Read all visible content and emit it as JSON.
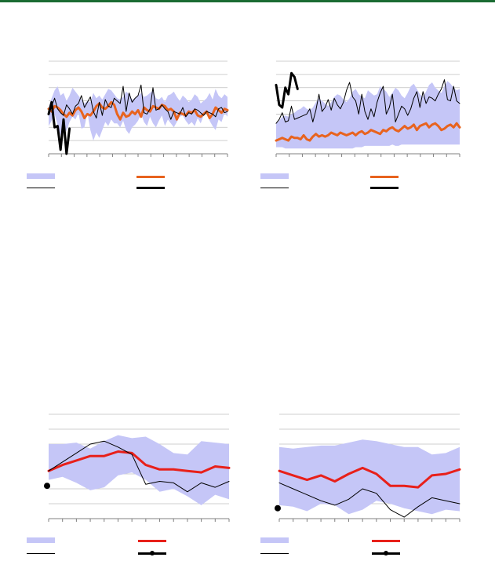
{
  "colors": {
    "top_bar": "#1a6b32",
    "band": "#c5c6f7",
    "orange": "#e8631e",
    "red": "#e8201a",
    "black": "#000000",
    "grid": "#bfbfbf"
  },
  "chart_data": [
    {
      "type": "line",
      "panel": "top-left",
      "title": "",
      "xlabel": "",
      "ylabel": "",
      "ylim": [
        0,
        7
      ],
      "n_ticks_x": 14,
      "grid": "horizontal",
      "band_low": [
        2.1,
        2.5,
        3.0,
        2.2,
        1.4,
        1.9,
        1.7,
        2.4,
        2.8,
        2.6,
        3.1,
        1.9,
        2.0,
        3.1,
        1.8,
        1.0,
        1.6,
        1.2,
        1.8,
        2.4,
        2.1,
        2.6,
        2.3,
        2.3,
        2.0,
        2.5,
        1.8,
        1.5,
        2.0,
        2.2,
        2.5,
        3.0,
        2.4,
        2.1,
        2.8,
        2.3,
        2.0,
        2.5,
        2.9,
        2.1,
        2.6,
        2.3,
        2.0,
        2.4,
        2.8,
        2.9,
        2.5,
        2.2,
        2.4,
        2.1,
        2.7,
        2.3,
        2.9,
        3.1,
        2.5,
        2.1,
        1.8,
        2.6,
        2.4,
        3.1,
        2.8
      ],
      "band_high": [
        3.5,
        4.2,
        4.8,
        5.1,
        4.4,
        4.6,
        4.0,
        4.4,
        5.0,
        4.7,
        4.4,
        4.1,
        3.8,
        4.0,
        3.9,
        4.6,
        4.2,
        4.4,
        4.1,
        4.5,
        4.9,
        4.8,
        4.5,
        4.2,
        4.1,
        4.3,
        4.7,
        4.5,
        4.1,
        4.2,
        4.4,
        4.6,
        4.3,
        4.4,
        4.6,
        4.8,
        4.2,
        4.1,
        4.3,
        3.9,
        4.4,
        4.5,
        4.7,
        4.3,
        4.0,
        4.4,
        4.2,
        3.9,
        4.1,
        4.5,
        4.3,
        3.8,
        4.0,
        4.2,
        4.6,
        4.1,
        4.9,
        4.4,
        4.2,
        4.5,
        4.3
      ],
      "series": [
        {
          "style": "orange-thick",
          "values": [
            3.4,
            3.2,
            3.6,
            3.5,
            3.3,
            3.0,
            2.8,
            3.1,
            2.9,
            3.3,
            3.5,
            3.2,
            2.7,
            3.0,
            2.9,
            3.2,
            3.6,
            3.8,
            3.5,
            3.4,
            3.6,
            3.9,
            3.7,
            3.0,
            2.6,
            3.1,
            2.8,
            2.9,
            3.2,
            3.0,
            3.3,
            2.8,
            3.5,
            3.3,
            3.2,
            3.6,
            3.5,
            3.4,
            3.7,
            3.6,
            3.3,
            3.4,
            3.2,
            2.6,
            3.1,
            3.0,
            2.9,
            3.2,
            3.1,
            3.3,
            2.9,
            2.8,
            3.0,
            3.2,
            2.7,
            3.0,
            3.5,
            3.3,
            3.1,
            3.4,
            3.3
          ]
        },
        {
          "style": "black-thin",
          "values": [
            3.0,
            3.6,
            4.2,
            3.4,
            3.1,
            2.9,
            3.7,
            3.4,
            3.0,
            3.6,
            3.8,
            4.4,
            3.5,
            3.9,
            4.3,
            3.2,
            2.7,
            3.9,
            2.9,
            4.1,
            3.6,
            3.5,
            4.2,
            4.0,
            3.8,
            5.1,
            3.2,
            4.6,
            3.9,
            4.2,
            4.4,
            5.2,
            3.1,
            3.0,
            3.4,
            5.0,
            3.3,
            3.4,
            3.7,
            3.4,
            3.2,
            2.6,
            3.2,
            3.1,
            3.0,
            3.5,
            2.8,
            3.1,
            3.0,
            3.4,
            3.3,
            3.1,
            2.9,
            3.2,
            3.1,
            3.0,
            2.8,
            3.4,
            3.5,
            3.1,
            3.2
          ]
        },
        {
          "style": "black-thick",
          "values": [
            3.0,
            3.9,
            2.0,
            2.1,
            0.3,
            2.6,
            0.0,
            1.9
          ]
        }
      ]
    },
    {
      "type": "line",
      "panel": "top-right",
      "title": "",
      "xlabel": "",
      "ylabel": "",
      "ylim": [
        0,
        7
      ],
      "n_ticks_x": 14,
      "grid": "horizontal",
      "band_low": [
        0.5,
        0.5,
        0.5,
        0.4,
        0.4,
        0.4,
        0.4,
        0.4,
        0.4,
        0.4,
        0.4,
        0.4,
        0.4,
        0.4,
        0.4,
        0.4,
        0.4,
        0.4,
        0.4,
        0.4,
        0.4,
        0.4,
        0.4,
        0.4,
        0.4,
        0.4,
        0.5,
        0.5,
        0.5,
        0.6,
        0.6,
        0.6,
        0.6,
        0.6,
        0.6,
        0.6,
        0.6,
        0.6,
        0.7,
        0.6,
        0.6,
        0.7,
        0.7,
        0.7,
        0.7,
        0.7,
        0.7,
        0.7,
        0.7,
        0.7,
        0.7,
        0.7,
        0.7,
        0.7,
        0.7,
        0.7,
        0.7,
        0.7,
        0.7,
        0.7,
        0.7
      ],
      "band_high": [
        2.3,
        2.5,
        2.8,
        2.9,
        2.8,
        3.0,
        3.1,
        3.3,
        3.4,
        3.6,
        3.4,
        3.3,
        3.5,
        3.9,
        4.2,
        4.0,
        3.8,
        3.6,
        3.9,
        4.3,
        4.5,
        4.4,
        4.1,
        3.9,
        4.2,
        4.7,
        4.9,
        4.5,
        4.3,
        4.2,
        4.8,
        4.6,
        4.4,
        4.5,
        5.1,
        4.9,
        4.7,
        4.3,
        4.6,
        5.0,
        4.8,
        4.4,
        4.2,
        4.6,
        5.1,
        5.3,
        4.9,
        4.5,
        4.3,
        4.7,
        5.2,
        5.4,
        5.0,
        4.8,
        4.6,
        5.1,
        5.5,
        5.3,
        5.0,
        4.8,
        4.9
      ],
      "series": [
        {
          "style": "orange-thick",
          "values": [
            1.0,
            1.1,
            1.2,
            1.1,
            1.0,
            1.3,
            1.2,
            1.2,
            1.1,
            1.4,
            1.1,
            1.0,
            1.3,
            1.5,
            1.3,
            1.4,
            1.3,
            1.4,
            1.6,
            1.5,
            1.4,
            1.6,
            1.5,
            1.4,
            1.5,
            1.6,
            1.4,
            1.6,
            1.7,
            1.5,
            1.6,
            1.8,
            1.7,
            1.6,
            1.5,
            1.8,
            1.7,
            1.9,
            2.0,
            1.8,
            1.7,
            1.9,
            2.1,
            1.9,
            2.0,
            2.2,
            1.8,
            2.1,
            2.2,
            2.3,
            2.0,
            2.2,
            2.3,
            2.1,
            1.8,
            1.9,
            2.1,
            2.2,
            2.0,
            2.3,
            2.0
          ]
        },
        {
          "style": "black-thin",
          "values": [
            2.3,
            2.6,
            3.1,
            2.4,
            2.5,
            3.6,
            2.6,
            2.7,
            2.8,
            2.9,
            3.0,
            3.4,
            2.4,
            3.3,
            4.5,
            3.2,
            3.5,
            4.1,
            3.3,
            4.2,
            3.7,
            3.4,
            3.9,
            4.8,
            5.4,
            4.3,
            4.0,
            3.0,
            4.5,
            3.2,
            2.6,
            3.4,
            2.8,
            3.9,
            4.6,
            5.1,
            3.0,
            3.5,
            4.5,
            2.4,
            3.0,
            3.6,
            3.4,
            2.9,
            3.4,
            4.2,
            4.7,
            3.5,
            4.7,
            3.8,
            4.3,
            4.2,
            4.0,
            4.5,
            4.9,
            5.6,
            4.1,
            4.0,
            5.1,
            4.0,
            3.8
          ]
        },
        {
          "style": "black-thick",
          "values": [
            5.2,
            3.7,
            3.5,
            5.0,
            4.5,
            6.1,
            5.8,
            4.9
          ]
        }
      ]
    },
    {
      "type": "line",
      "panel": "bottom-left",
      "title": "",
      "xlabel": "",
      "ylabel": "",
      "ylim": [
        0,
        7
      ],
      "n_ticks_x": 13,
      "grid": "horizontal",
      "band_low": [
        2.6,
        2.8,
        2.4,
        1.9,
        2.1,
        2.9,
        3.1,
        2.6,
        1.8,
        2.0,
        1.5,
        0.9,
        1.6,
        1.3
      ],
      "band_high": [
        5.0,
        5.0,
        5.1,
        4.7,
        5.2,
        5.6,
        5.4,
        5.5,
        5.0,
        4.4,
        4.3,
        5.2,
        5.1,
        5.0
      ],
      "series": [
        {
          "style": "red-thick",
          "values": [
            3.2,
            3.6,
            3.9,
            4.2,
            4.2,
            4.5,
            4.4,
            3.6,
            3.3,
            3.3,
            3.2,
            3.1,
            3.5,
            3.4
          ]
        },
        {
          "style": "black-thin",
          "values": [
            3.2,
            3.8,
            4.4,
            5.0,
            5.2,
            4.8,
            4.3,
            2.3,
            2.5,
            2.4,
            1.8,
            2.4,
            2.1,
            2.5
          ]
        },
        {
          "style": "black-dot",
          "values": [
            2.2
          ]
        }
      ]
    },
    {
      "type": "line",
      "panel": "bottom-right",
      "title": "",
      "xlabel": "",
      "ylabel": "",
      "ylim": [
        0,
        7
      ],
      "n_ticks_x": 13,
      "grid": "horizontal",
      "band_low": [
        0.9,
        0.8,
        0.5,
        1.0,
        0.9,
        0.3,
        0.6,
        1.2,
        1.0,
        0.7,
        0.5,
        0.3,
        0.6,
        0.5
      ],
      "band_high": [
        4.8,
        4.7,
        4.8,
        4.9,
        4.9,
        5.1,
        5.3,
        5.2,
        5.0,
        4.8,
        4.8,
        4.3,
        4.4,
        4.8
      ],
      "series": [
        {
          "style": "red-thick",
          "values": [
            3.2,
            2.9,
            2.6,
            2.9,
            2.5,
            3.0,
            3.4,
            3.0,
            2.2,
            2.2,
            2.1,
            2.9,
            3.0,
            3.3
          ]
        },
        {
          "style": "black-thin",
          "values": [
            2.4,
            2.0,
            1.6,
            1.2,
            0.9,
            1.3,
            2.0,
            1.7,
            0.6,
            0.1,
            0.8,
            1.4,
            1.2,
            1.0
          ]
        },
        {
          "style": "black-dot",
          "values": [
            0.7
          ]
        }
      ]
    }
  ],
  "legends": [
    {
      "panel": "top-left",
      "items": [
        "band",
        "orange-thick",
        "black-thin",
        "black-thick"
      ]
    },
    {
      "panel": "top-right",
      "items": [
        "band",
        "orange-thick",
        "black-thin",
        "black-thick"
      ]
    },
    {
      "panel": "bottom-left",
      "items": [
        "band",
        "red-thick",
        "black-thin",
        "black-dot"
      ]
    },
    {
      "panel": "bottom-right",
      "items": [
        "band",
        "red-thick",
        "black-thin",
        "black-dot"
      ]
    }
  ]
}
